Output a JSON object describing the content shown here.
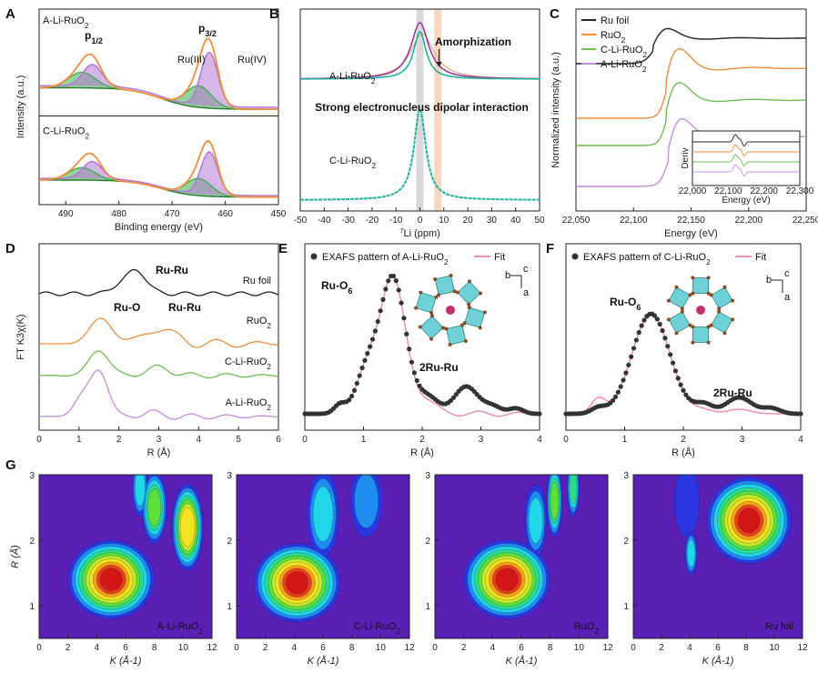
{
  "figure": {
    "panel_letters": [
      "A",
      "B",
      "C",
      "D",
      "E",
      "F",
      "G"
    ]
  },
  "chart_data": [
    {
      "panel": "A",
      "type": "line",
      "xlabel": "Binding energy (eV)",
      "ylabel": "Intensity (a.u.)",
      "xlim": [
        495,
        450
      ],
      "xticks": [
        "490",
        "480",
        "470",
        "460",
        "450"
      ],
      "x_reversed": true,
      "samples": [
        "A-Li-RuO2",
        "C-Li-RuO2"
      ],
      "peak_labels": [
        "Ru 3p1/2",
        "Ru 3p3/2",
        "Ru(III)",
        "Ru(IV)"
      ],
      "peaks_eV": {
        "ru3p32_RuIV": 463,
        "ru3p32_RuIII": 465,
        "ru3p12_RuIV": 485,
        "ru3p12_RuIII": 487
      },
      "colors": {
        "envelope": "#f08c3a",
        "ru4": "#b57ad6",
        "ru3": "#3cae4a",
        "baseline": "#1f7a2a",
        "raw": "#555555"
      }
    },
    {
      "panel": "B",
      "type": "line",
      "xlabel": "7Li (ppm)",
      "xlim": [
        -50,
        50
      ],
      "xticks": [
        "-50",
        "-40",
        "-30",
        "-20",
        "-10",
        "0",
        "10",
        "20",
        "30",
        "40",
        "50"
      ],
      "series_labels": [
        "A-Li-RuO2",
        "C-Li-RuO2"
      ],
      "annotations": [
        "Amorphization",
        "Strong electronucleus dipolar interaction"
      ],
      "highlight_bands_ppm": [
        [
          -1.5,
          1.5
        ],
        [
          6,
          9
        ]
      ],
      "colors": {
        "outer": "#8e3fa7",
        "inner": "#1fb39a",
        "broad": "#f0a27a",
        "band_gray": "#d9d9d9",
        "band_orange": "#f8d6bf"
      }
    },
    {
      "panel": "C",
      "type": "line",
      "xlabel": "Energy (eV)",
      "ylabel": "Normalized intensity (a.u.)",
      "xlim": [
        22050,
        22250
      ],
      "xticks": [
        "22,050",
        "22,100",
        "22,150",
        "22,200",
        "22,250"
      ],
      "legend": [
        "Ru foil",
        "RuO2",
        "C-Li-RuO2",
        "A-Li-RuO2"
      ],
      "legend_position": "top-left",
      "colors": [
        "#222222",
        "#f08c3a",
        "#6ac04a",
        "#c58be0"
      ],
      "inset": {
        "ylabel": "Deriv",
        "xlabel": "Energy (eV)",
        "xticks": [
          "22,000",
          "22,100",
          "22,200",
          "22,300"
        ]
      }
    },
    {
      "panel": "D",
      "type": "line",
      "xlabel": "R (Å)",
      "ylabel": "FT K3χ(K)",
      "xlim": [
        0,
        6
      ],
      "xticks": [
        "0",
        "1",
        "2",
        "3",
        "4",
        "5",
        "6"
      ],
      "series": [
        {
          "name": "Ru foil",
          "color": "#222222"
        },
        {
          "name": "RuO2",
          "color": "#f08c3a"
        },
        {
          "name": "C-Li-RuO2",
          "color": "#6ac04a"
        },
        {
          "name": "A-Li-RuO2",
          "color": "#c58be0"
        }
      ],
      "annotations": [
        "Ru-Ru",
        "Ru-O",
        "Ru-Ru"
      ]
    },
    {
      "panel": "E",
      "type": "scatter",
      "xlabel": "R (Å)",
      "xlim": [
        0,
        4
      ],
      "xticks": [
        "0",
        "1",
        "2",
        "3",
        "4"
      ],
      "legend": [
        "EXAFS pattern of A-Li-RuO2",
        "Fit"
      ],
      "annotations": [
        "Ru-O6",
        "2Ru-Ru"
      ],
      "axis_labels": [
        "b",
        "c",
        "a"
      ],
      "colors": {
        "points": "#333333",
        "fit": "#ec8fb0"
      }
    },
    {
      "panel": "F",
      "type": "scatter",
      "xlabel": "R (Å)",
      "xlim": [
        0,
        4
      ],
      "xticks": [
        "0",
        "1",
        "2",
        "3",
        "4"
      ],
      "legend": [
        "EXAFS pattern of C-Li-RuO2",
        "Fit"
      ],
      "annotations": [
        "Ru-O6",
        "2Ru-Ru"
      ],
      "axis_labels": [
        "b",
        "c",
        "a"
      ],
      "colors": {
        "points": "#333333",
        "fit": "#ec8fb0"
      }
    },
    {
      "panel": "G",
      "type": "heatmap",
      "xlabel": "K (Å-1)",
      "ylabel": "R (Å)",
      "xlim": [
        0,
        12
      ],
      "ylim": [
        0.5,
        3
      ],
      "xticks": [
        "0",
        "2",
        "4",
        "6",
        "8",
        "10",
        "12"
      ],
      "yticks": [
        "1",
        "2",
        "3"
      ],
      "maps": [
        {
          "label": "A-Li-RuO2",
          "max_K": 5.0,
          "max_R": 1.4
        },
        {
          "label": "C-Li-RuO2",
          "max_K": 4.2,
          "max_R": 1.35
        },
        {
          "label": "RuO2",
          "max_K": 5.0,
          "max_R": 1.4
        },
        {
          "label": "Ru foil",
          "max_K": 8.2,
          "max_R": 2.3
        }
      ]
    }
  ]
}
